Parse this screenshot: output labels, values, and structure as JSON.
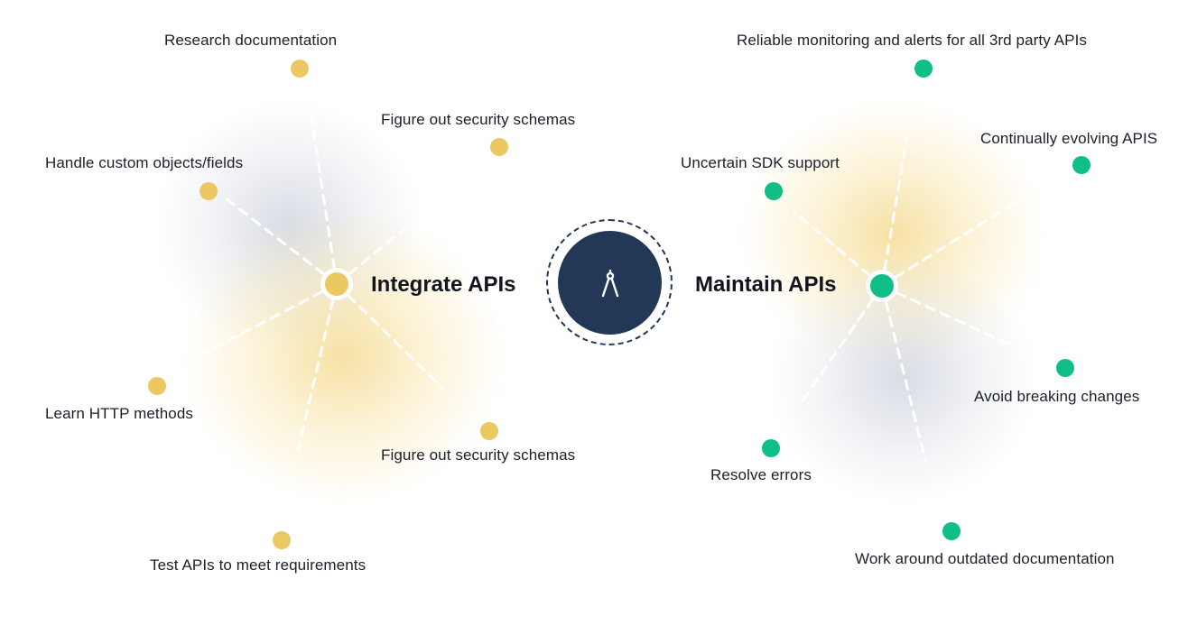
{
  "center": {
    "icon": "compass-icon"
  },
  "integrate": {
    "title": "Integrate APIs",
    "color": "#ecc862",
    "items": [
      "Research documentation",
      "Figure out security schemas",
      "Handle custom objects/fields",
      "Learn HTTP methods",
      "Figure out security schemas",
      "Test APIs to meet requirements"
    ]
  },
  "maintain": {
    "title": "Maintain APIs",
    "color": "#0fbf87",
    "items": [
      "Reliable monitoring and alerts for all 3rd party APIs",
      "Continually evolving APIS",
      "Uncertain SDK support",
      "Avoid breaking changes",
      "Resolve errors",
      "Work around outdated documentation"
    ]
  },
  "colors": {
    "navy": "#233757",
    "gold": "#ecc862",
    "green": "#0fbf87"
  }
}
